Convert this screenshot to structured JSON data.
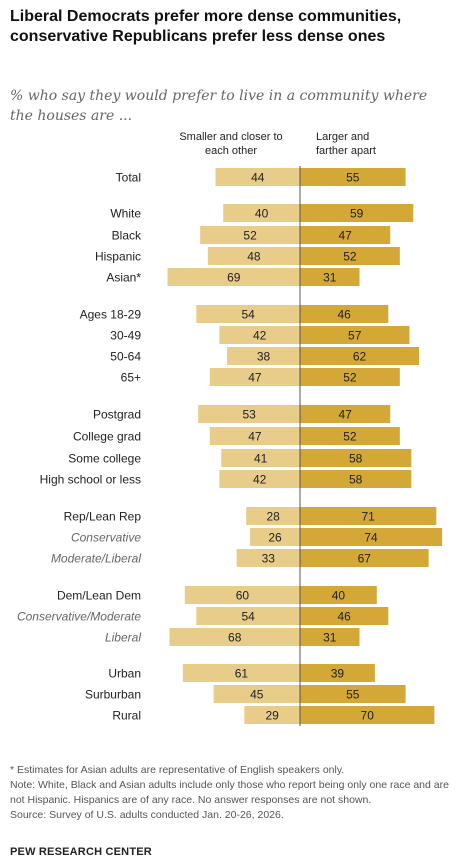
{
  "header": {
    "title": "Liberal Democrats prefer more dense communities, conservative Republicans prefer less dense ones",
    "subtitle": "% who say they would prefer to live in a community where the houses are ..."
  },
  "chart_data": {
    "type": "bar",
    "orientation": "diverging-horizontal",
    "series": [
      {
        "name": "Smaller and closer to each other",
        "color": "#e8cc8a"
      },
      {
        "name": "Larger and farther apart",
        "color": "#d4a836"
      }
    ],
    "rows": [
      {
        "label": "Total",
        "italic": false,
        "left": 44,
        "right": 55
      },
      {
        "label": "White",
        "italic": false,
        "left": 40,
        "right": 59
      },
      {
        "label": "Black",
        "italic": false,
        "left": 52,
        "right": 47
      },
      {
        "label": "Hispanic",
        "italic": false,
        "left": 48,
        "right": 52
      },
      {
        "label": "Asian*",
        "italic": false,
        "left": 69,
        "right": 31
      },
      {
        "label": "Ages 18-29",
        "italic": false,
        "left": 54,
        "right": 46
      },
      {
        "label": "30-49",
        "italic": false,
        "left": 42,
        "right": 57
      },
      {
        "label": "50-64",
        "italic": false,
        "left": 38,
        "right": 62
      },
      {
        "label": "65+",
        "italic": false,
        "left": 47,
        "right": 52
      },
      {
        "label": "Postgrad",
        "italic": false,
        "left": 53,
        "right": 47
      },
      {
        "label": "College grad",
        "italic": false,
        "left": 47,
        "right": 52
      },
      {
        "label": "Some college",
        "italic": false,
        "left": 41,
        "right": 58
      },
      {
        "label": "High school or less",
        "italic": false,
        "left": 42,
        "right": 58
      },
      {
        "label": "Rep/Lean Rep",
        "italic": false,
        "left": 28,
        "right": 71
      },
      {
        "label": "Conservative",
        "italic": true,
        "left": 26,
        "right": 74
      },
      {
        "label": "Moderate/Liberal",
        "italic": true,
        "left": 33,
        "right": 67
      },
      {
        "label": "Dem/Lean Dem",
        "italic": false,
        "left": 60,
        "right": 40
      },
      {
        "label": "Conservative/Moderate",
        "italic": true,
        "left": 54,
        "right": 46
      },
      {
        "label": "Liberal",
        "italic": true,
        "left": 68,
        "right": 31
      },
      {
        "label": "Urban",
        "italic": false,
        "left": 61,
        "right": 39
      },
      {
        "label": "Surburban",
        "italic": false,
        "left": 45,
        "right": 55
      },
      {
        "label": "Rural",
        "italic": false,
        "left": 29,
        "right": 70
      }
    ]
  },
  "notes": {
    "asterisk": "* Estimates for Asian adults are representative of English speakers only.",
    "note": "Note: White, Black and Asian adults include only those who report being only one race and are not Hispanic. Hispanics are of any race. No answer responses are not shown.",
    "source": "Source: Survey of U.S. adults conducted Jan. 20-26, 2026."
  },
  "footer": {
    "org": "PEW RESEARCH CENTER"
  }
}
